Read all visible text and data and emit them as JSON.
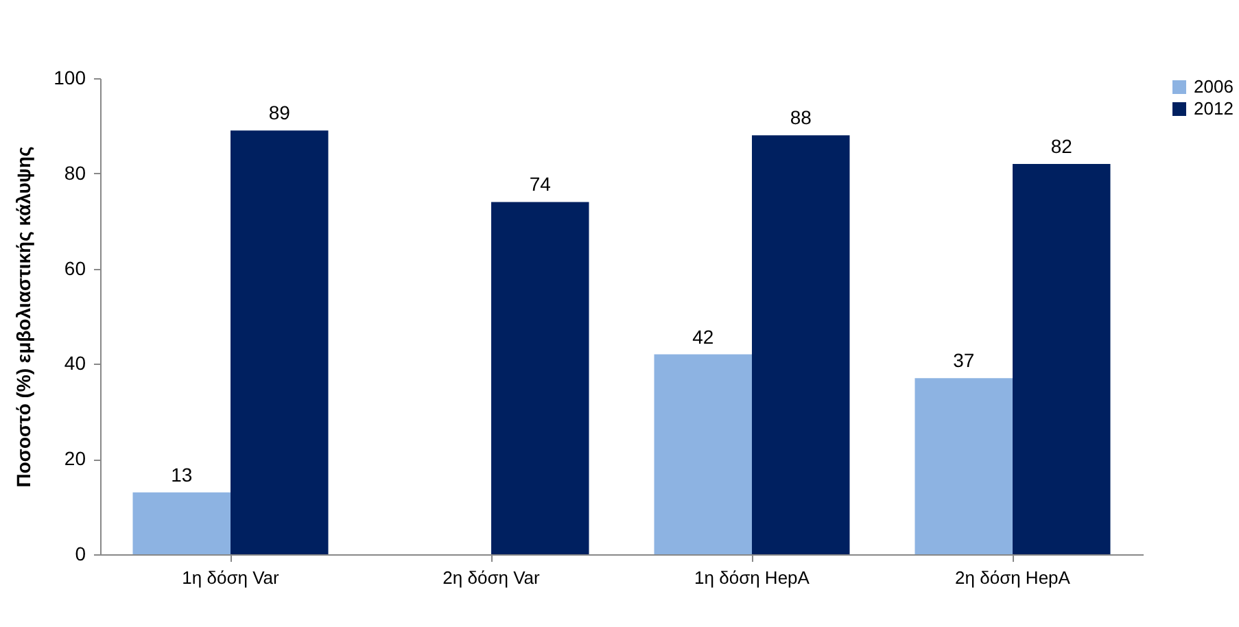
{
  "chart_data": {
    "type": "bar",
    "ylabel": "Ποσοστό (%) εμβολιαστικής κάλυψης",
    "categories": [
      "1η δόση Var",
      "2η δόση Var",
      "1η δόση HepA",
      "2η δόση HepA"
    ],
    "series": [
      {
        "name": "2006",
        "color": "#8db3e2",
        "values": [
          13,
          null,
          42,
          37
        ]
      },
      {
        "name": "2012",
        "color": "#002060",
        "values": [
          89,
          74,
          88,
          82
        ]
      }
    ],
    "ylim": [
      0,
      100
    ],
    "yticks": [
      0,
      20,
      40,
      60,
      80,
      100
    ],
    "grid": false,
    "legend": "right",
    "data_labels": true
  }
}
